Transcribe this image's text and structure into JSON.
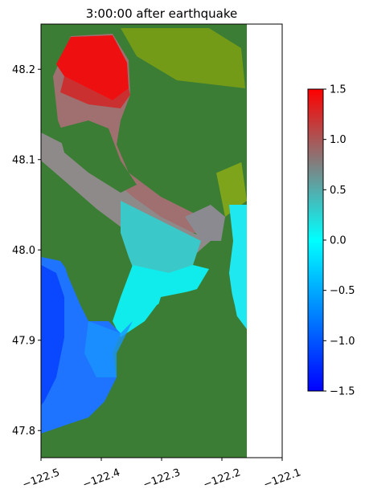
{
  "chart_data": {
    "type": "heatmap",
    "title": "3:00:00 after earthquake",
    "xlabel": "",
    "ylabel": "",
    "xlim": [
      -122.5,
      -122.1
    ],
    "ylim": [
      47.77,
      48.25
    ],
    "x_ticks": [
      -122.5,
      -122.4,
      -122.3,
      -122.2,
      -122.1
    ],
    "x_tick_labels": [
      "−122.5",
      "−122.4",
      "−122.3",
      "−122.2",
      "−122.1"
    ],
    "y_ticks": [
      47.8,
      47.9,
      48.0,
      48.1,
      48.2
    ],
    "y_tick_labels": [
      "47.8",
      "47.9",
      "48.0",
      "48.1",
      "48.2"
    ],
    "data_extent_x": [
      -122.5,
      -122.16
    ],
    "colorbar": {
      "min": -1.5,
      "max": 1.5,
      "ticks": [
        -1.5,
        -1.0,
        -0.5,
        0.0,
        0.5,
        1.0,
        1.5
      ],
      "tick_labels": [
        "−1.5",
        "−1.0",
        "−0.5",
        "0.0",
        "0.5",
        "1.0",
        "1.5"
      ],
      "colors": [
        "#0000ff",
        "#00ffff",
        "#808080",
        "#ff0000"
      ]
    },
    "land_color": "#3b7d35",
    "grid": false,
    "legend": "colorbar-right"
  }
}
